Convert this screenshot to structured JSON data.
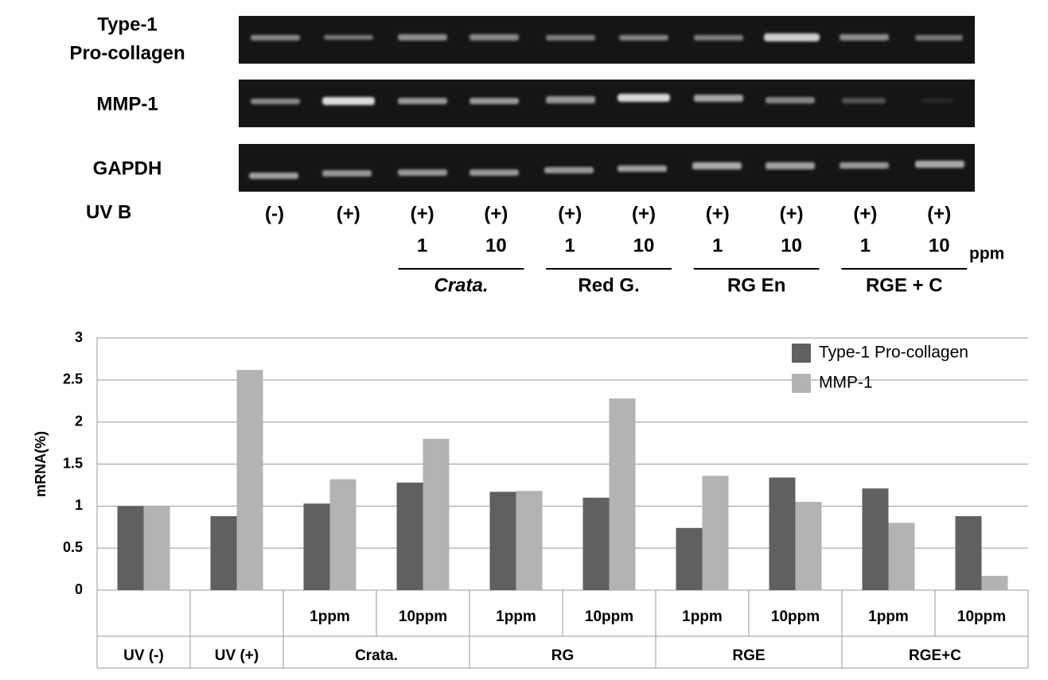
{
  "gel": {
    "rows": [
      [
        "Type-1",
        "Pro-collagen"
      ],
      [
        "MMP-1"
      ],
      [
        "GAPDH"
      ]
    ],
    "uv_label": "UV B",
    "uv": [
      "(-)",
      "(+)",
      "(+)",
      "(+)",
      "(+)",
      "(+)",
      "(+)",
      "(+)",
      "(+)",
      "(+)"
    ],
    "doses": [
      "1",
      "10",
      "1",
      "10",
      "1",
      "10",
      "1",
      "10"
    ],
    "dose_unit": "ppm",
    "groups": [
      "Crata.",
      "Red G.",
      "RG En",
      "RGE + C"
    ]
  },
  "chart_data": {
    "type": "bar",
    "y_label": "mRNA(%)",
    "ylim": [
      0,
      3
    ],
    "yticks": [
      0,
      0.5,
      1,
      1.5,
      2,
      2.5,
      3
    ],
    "grid": true,
    "legend": "top-right",
    "categories": [
      null,
      null,
      "1ppm",
      "10ppm",
      "1ppm",
      "10ppm",
      "1ppm",
      "10ppm",
      "1ppm",
      "10ppm"
    ],
    "groups": [
      {
        "name": "UV (-)",
        "size": 1
      },
      {
        "name": "UV (+)",
        "size": 1
      },
      {
        "name": "Crata.",
        "size": 2
      },
      {
        "name": "RG",
        "size": 2
      },
      {
        "name": "RGE",
        "size": 2
      },
      {
        "name": "RGE+C",
        "size": 2
      }
    ],
    "series": [
      {
        "name": "Type-1 Pro-collagen",
        "color": "#606060",
        "values": [
          1.0,
          0.88,
          1.03,
          1.28,
          1.17,
          1.1,
          0.74,
          1.34,
          1.21,
          0.88
        ]
      },
      {
        "name": "MMP-1",
        "color": "#b3b3b3",
        "values": [
          1.0,
          2.62,
          1.32,
          1.8,
          1.18,
          2.28,
          1.36,
          1.05,
          0.8,
          0.17
        ]
      }
    ]
  }
}
